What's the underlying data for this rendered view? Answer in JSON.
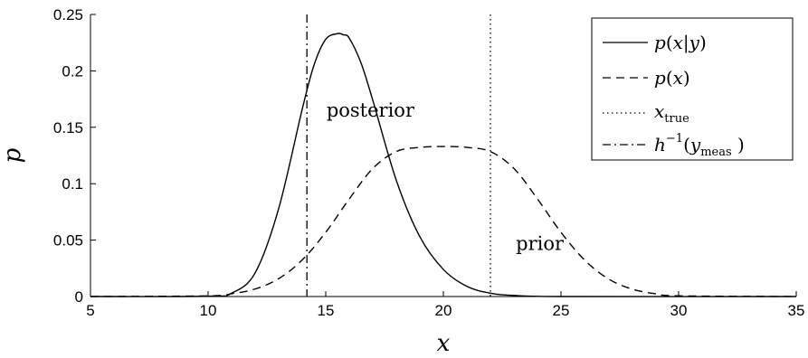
{
  "chart_data": {
    "type": "line",
    "xlabel": "x",
    "ylabel": "p",
    "xlim": [
      5,
      35
    ],
    "ylim": [
      0,
      0.25
    ],
    "xticks": [
      5,
      10,
      15,
      20,
      25,
      30,
      35
    ],
    "yticks": [
      0,
      0.05,
      0.1,
      0.15,
      0.2,
      0.25
    ],
    "xtick_labels": [
      "5",
      "10",
      "15",
      "20",
      "25",
      "30",
      "35"
    ],
    "ytick_labels": [
      "0",
      "0.05",
      "0.1",
      "0.15",
      "0.2",
      "0.25"
    ],
    "grid": false,
    "legend_position": "top-right",
    "series": [
      {
        "name": "p(x|y)",
        "style": "solid",
        "x": [
          5,
          10,
          11,
          12,
          13,
          14,
          14.5,
          15,
          15.5,
          15.75,
          16,
          16.5,
          17,
          18,
          19,
          20,
          21,
          22,
          23,
          25,
          35
        ],
        "y": [
          0,
          0.0003,
          0.003,
          0.021,
          0.078,
          0.166,
          0.205,
          0.228,
          0.233,
          0.232,
          0.229,
          0.207,
          0.174,
          0.103,
          0.053,
          0.024,
          0.009,
          0.003,
          0.001,
          0,
          0
        ]
      },
      {
        "name": "p(x)",
        "style": "dashed",
        "x": [
          5,
          10,
          11,
          12,
          13,
          14,
          15,
          16,
          17,
          18,
          19,
          20,
          21,
          22,
          23,
          24,
          25,
          26,
          27,
          28,
          29,
          30,
          35
        ],
        "y": [
          0,
          0.0006,
          0.0025,
          0.0067,
          0.0158,
          0.0324,
          0.0569,
          0.0865,
          0.1135,
          0.1285,
          0.1322,
          0.133,
          0.1322,
          0.1285,
          0.1135,
          0.0865,
          0.0569,
          0.0324,
          0.0158,
          0.0067,
          0.0025,
          0.0006,
          0
        ]
      },
      {
        "name": "x_true",
        "style": "dotted",
        "x_value": 22
      },
      {
        "name": "h^-1(y_meas )",
        "style": "dash-dot",
        "x_value": 14.2
      }
    ],
    "annotations": [
      {
        "text": "posterior",
        "x": 16.9,
        "y": 0.165
      },
      {
        "text": "prior",
        "x": 24.1,
        "y": 0.047
      }
    ]
  },
  "legend": {
    "entries": [
      {
        "style": "solid",
        "parts": [
          "p",
          "(",
          "x",
          "|",
          "y",
          ")"
        ]
      },
      {
        "style": "dashed",
        "parts": [
          "p",
          "(",
          "x",
          ")"
        ]
      },
      {
        "style": "dotted",
        "parts": [
          "x",
          "true"
        ]
      },
      {
        "style": "dash-dot",
        "parts": [
          "h",
          "−1",
          "(",
          "y",
          "meas",
          " )"
        ]
      }
    ]
  }
}
